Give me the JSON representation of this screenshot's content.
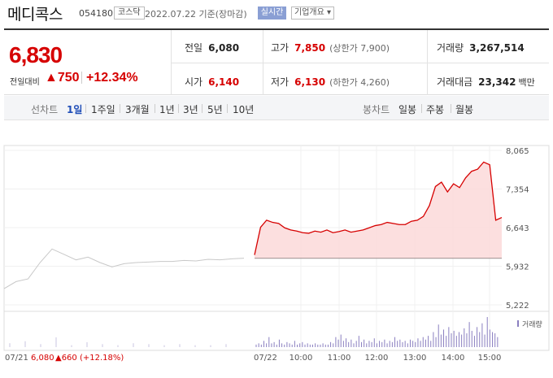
{
  "header": {
    "stock_name": "메디콕스",
    "stock_code": "054180",
    "market": "코스닥",
    "date_text": "2022.07.22 기준(장마감)",
    "realtime_label": "실시간",
    "info_button": "기업개요 ▾"
  },
  "summary": {
    "price": "6,830",
    "diff_label": "전일대비",
    "diff_arrow": "▲",
    "diff_value": "750",
    "diff_pct": "+12.34%",
    "prev_close": {
      "label": "전일",
      "value": "6,080"
    },
    "high": {
      "label": "고가",
      "value": "7,850",
      "limit": "(상한가 7,900)"
    },
    "volume": {
      "label": "거래량",
      "value": "3,267,514"
    },
    "open": {
      "label": "시가",
      "value": "6,140"
    },
    "low": {
      "label": "저가",
      "value": "6,130",
      "limit": "(하한가 4,260)"
    },
    "amount": {
      "label": "거래대금",
      "value": "23,342",
      "unit": "백만"
    }
  },
  "tabs": {
    "line_label": "선차트",
    "line_periods": [
      "1일",
      "1주일",
      "3개월",
      "1년",
      "3년",
      "5년",
      "10년"
    ],
    "candle_label": "봉차트",
    "candle_periods": [
      "일봉",
      "주봉",
      "월봉"
    ],
    "active": "1일"
  },
  "colors": {
    "up": "#d60000",
    "accent_blue": "#1f4db7",
    "line_prev": "#c8c8c8",
    "volume_bar": "#8a7fc0"
  },
  "chart_data": {
    "type": "line",
    "title": "",
    "ylim": [
      5222,
      8065
    ],
    "y_ticks": [
      "8,065",
      "7,354",
      "6,643",
      "5,932",
      "5,222"
    ],
    "y_tick_values": [
      8065,
      7354,
      6643,
      5932,
      5222
    ],
    "x_ticks": [
      "07/21",
      "07/22",
      "10:00",
      "11:00",
      "12:00",
      "13:00",
      "14:00",
      "15:00"
    ],
    "prev_day": {
      "label": "07/21",
      "close_text": "6,080",
      "change_text": "▲660 (+12.18%)"
    },
    "volume_legend": "거래량",
    "reference_price": 6080,
    "series": [
      {
        "x": [
          "07/21 open",
          "",
          "",
          "",
          "",
          "",
          "",
          "",
          "",
          "",
          "",
          "",
          "",
          "",
          "",
          "",
          "",
          "",
          "",
          "",
          "07/21 close"
        ],
        "values": [
          5520,
          5650,
          5700,
          6000,
          6250,
          6150,
          6050,
          6100,
          6000,
          5920,
          5980,
          6000,
          6010,
          6020,
          6020,
          6040,
          6030,
          6060,
          6050,
          6070,
          6080
        ]
      },
      {
        "x": [
          "07/22 09:00",
          "",
          "",
          "",
          "",
          "",
          "",
          "",
          "",
          "",
          "",
          "",
          "",
          "",
          "",
          "",
          "",
          "",
          "",
          "",
          "",
          "",
          "",
          "",
          "",
          "",
          "",
          "",
          "",
          "",
          "",
          "",
          "",
          "",
          "",
          "",
          "",
          "",
          "",
          "",
          "",
          "07/22 15:30"
        ],
        "values": [
          6140,
          6650,
          6780,
          6740,
          6720,
          6640,
          6600,
          6580,
          6550,
          6540,
          6580,
          6560,
          6600,
          6550,
          6570,
          6600,
          6560,
          6580,
          6600,
          6640,
          6680,
          6700,
          6740,
          6720,
          6700,
          6700,
          6760,
          6780,
          6850,
          7050,
          7400,
          7480,
          7300,
          7450,
          7380,
          7560,
          7680,
          7720,
          7850,
          7800,
          6780,
          6830
        ]
      }
    ],
    "volume_bars": [
      2,
      3,
      2,
      5,
      3,
      8,
      3,
      4,
      2,
      6,
      3,
      2,
      4,
      3,
      2,
      5,
      2,
      3,
      4,
      2,
      3,
      2,
      2,
      3,
      2,
      2,
      3,
      2,
      2,
      4,
      3,
      8,
      6,
      10,
      5,
      7,
      4,
      6,
      3,
      5,
      9,
      4,
      6,
      3,
      5,
      4,
      7,
      3,
      5,
      4,
      6,
      3,
      5,
      4,
      8,
      5,
      6,
      4,
      5,
      3,
      6,
      5,
      4,
      7,
      5,
      8,
      6,
      9,
      5,
      12,
      8,
      18,
      10,
      14,
      9,
      16,
      11,
      13,
      9,
      12,
      10,
      15,
      11,
      20,
      13,
      9,
      16,
      12,
      19,
      10,
      24,
      14,
      12,
      11,
      8
    ]
  }
}
